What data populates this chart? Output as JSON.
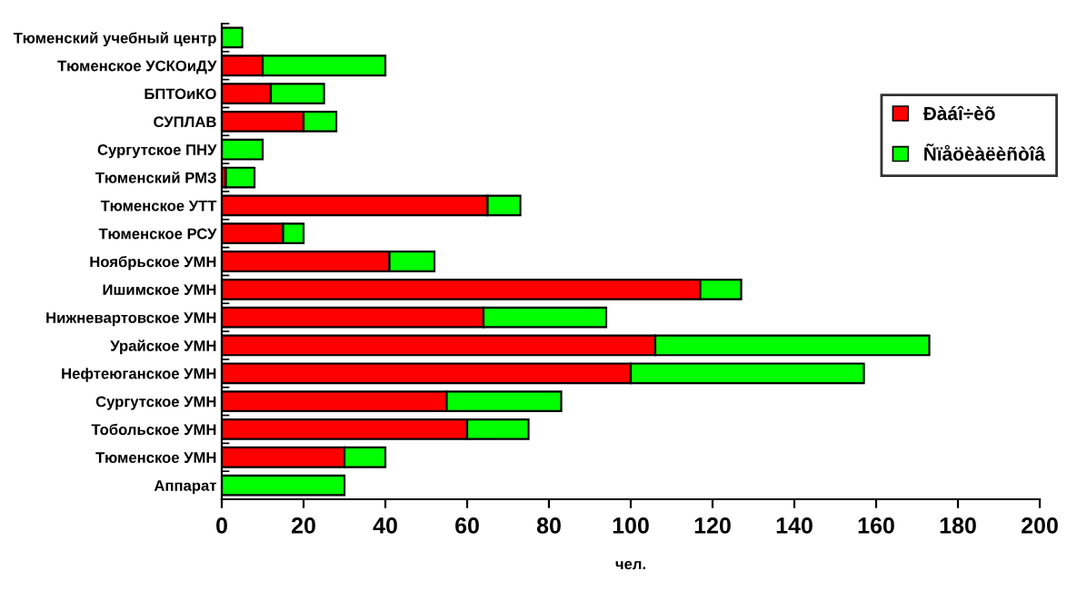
{
  "chart_data": {
    "type": "bar",
    "orientation": "horizontal",
    "stacked": true,
    "xlabel": "чел.",
    "categories": [
      "Тюменский учебный центр",
      "Тюменское УСКОиДУ",
      "БПТОиКО",
      "СУПЛАВ",
      "Сургутское ПНУ",
      "Тюменский РМЗ",
      "Тюменское УТТ",
      "Тюменское РСУ",
      "Ноябрьское УМН",
      "Ишимское УМН",
      "Нижневартовское УМН",
      "Урайское УМН",
      "Нефтеюганское УМН",
      "Сургутское УМН",
      "Тобольское УМН",
      "Тюменское УМН",
      "Аппарат"
    ],
    "series": [
      {
        "name": "Ðàáî÷èõ",
        "color": "#ff0000",
        "values": [
          0,
          10,
          12,
          20,
          0,
          1,
          65,
          15,
          41,
          117,
          64,
          106,
          100,
          55,
          60,
          30,
          0
        ]
      },
      {
        "name": "Ñïåöèàëèñòîâ",
        "color": "#00ff00",
        "values": [
          5,
          30,
          13,
          8,
          10,
          7,
          8,
          5,
          11,
          10,
          30,
          67,
          57,
          28,
          15,
          10,
          30
        ]
      }
    ],
    "xlim": [
      0,
      200
    ],
    "xticks": [
      0,
      20,
      40,
      60,
      80,
      100,
      120,
      140,
      160,
      180,
      200
    ],
    "grid": false,
    "legend": "top right"
  }
}
